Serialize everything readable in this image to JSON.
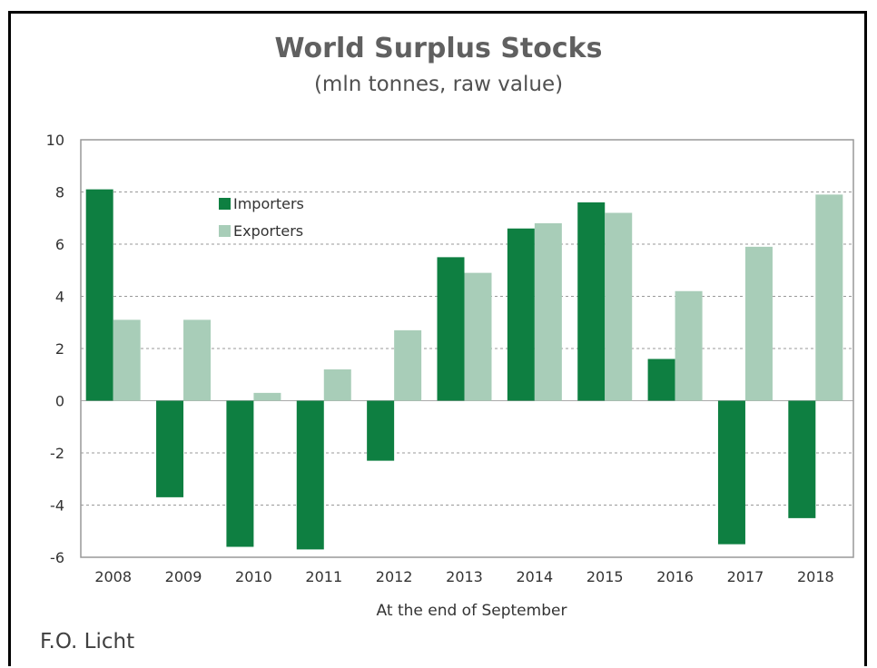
{
  "source_label": "F.O. Licht",
  "chart_data": {
    "type": "bar",
    "title": "World Surplus Stocks",
    "subtitle": "(mln tonnes, raw value)",
    "xlabel": "At the end of September",
    "ylabel": "",
    "ylim": [
      -6,
      10
    ],
    "yticks": [
      -6,
      -4,
      -2,
      0,
      2,
      4,
      6,
      8,
      10
    ],
    "grid": true,
    "legend_position": "top-left",
    "categories": [
      "2008",
      "2009",
      "2010",
      "2011",
      "2012",
      "2013",
      "2014",
      "2015",
      "2016",
      "2017",
      "2018"
    ],
    "series": [
      {
        "name": "Importers",
        "color": "#0e7f41",
        "values": [
          8.1,
          -3.7,
          -5.6,
          -5.7,
          -2.3,
          5.5,
          6.6,
          7.6,
          1.6,
          -5.5,
          -4.5
        ]
      },
      {
        "name": "Exporters",
        "color": "#a8cdb8",
        "values": [
          3.1,
          3.1,
          0.3,
          1.2,
          2.7,
          4.9,
          6.8,
          7.2,
          4.2,
          5.9,
          7.9
        ]
      }
    ]
  }
}
